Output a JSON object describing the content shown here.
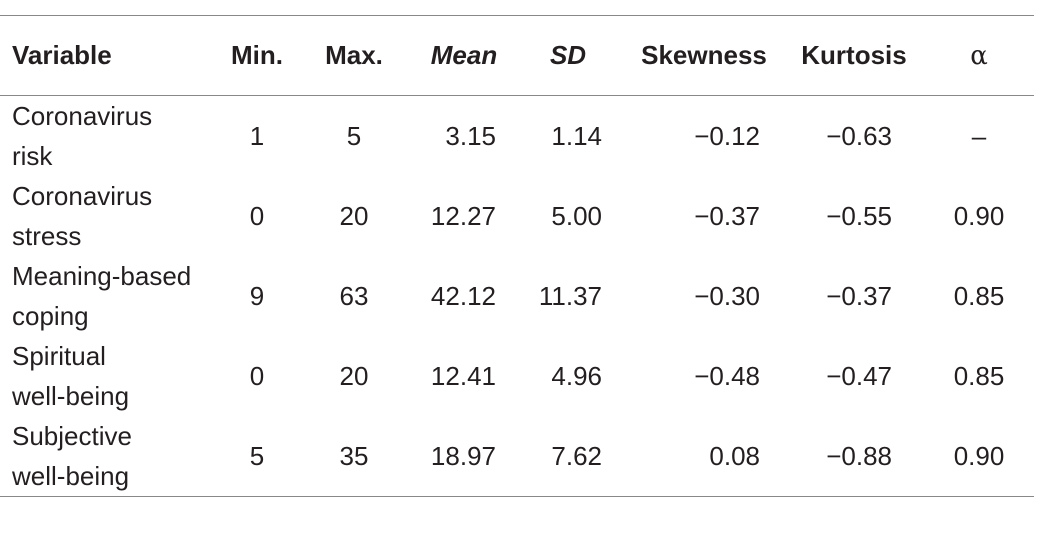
{
  "table": {
    "headers": {
      "variable": "Variable",
      "min": "Min.",
      "max": "Max.",
      "mean": "Mean",
      "sd": "SD",
      "skewness": "Skewness",
      "kurtosis": "Kurtosis",
      "alpha": "α"
    },
    "rows": [
      {
        "variable_line1": "Coronavirus",
        "variable_line2": "risk",
        "min": "1",
        "max": "5",
        "mean": "3.15",
        "sd": "1.14",
        "skewness": "−0.12",
        "kurtosis": "−0.63",
        "alpha": "–"
      },
      {
        "variable_line1": "Coronavirus",
        "variable_line2": "stress",
        "min": "0",
        "max": "20",
        "mean": "12.27",
        "sd": "5.00",
        "skewness": "−0.37",
        "kurtosis": "−0.55",
        "alpha": "0.90"
      },
      {
        "variable_line1": "Meaning-based",
        "variable_line2": "coping",
        "min": "9",
        "max": "63",
        "mean": "42.12",
        "sd": "11.37",
        "skewness": "−0.30",
        "kurtosis": "−0.37",
        "alpha": "0.85"
      },
      {
        "variable_line1": "Spiritual",
        "variable_line2": "well-being",
        "min": "0",
        "max": "20",
        "mean": "12.41",
        "sd": "4.96",
        "skewness": "−0.48",
        "kurtosis": "−0.47",
        "alpha": "0.85"
      },
      {
        "variable_line1": "Subjective",
        "variable_line2": "well-being",
        "min": "5",
        "max": "35",
        "mean": "18.97",
        "sd": "7.62",
        "skewness": "0.08",
        "kurtosis": "−0.88",
        "alpha": "0.90"
      }
    ]
  }
}
